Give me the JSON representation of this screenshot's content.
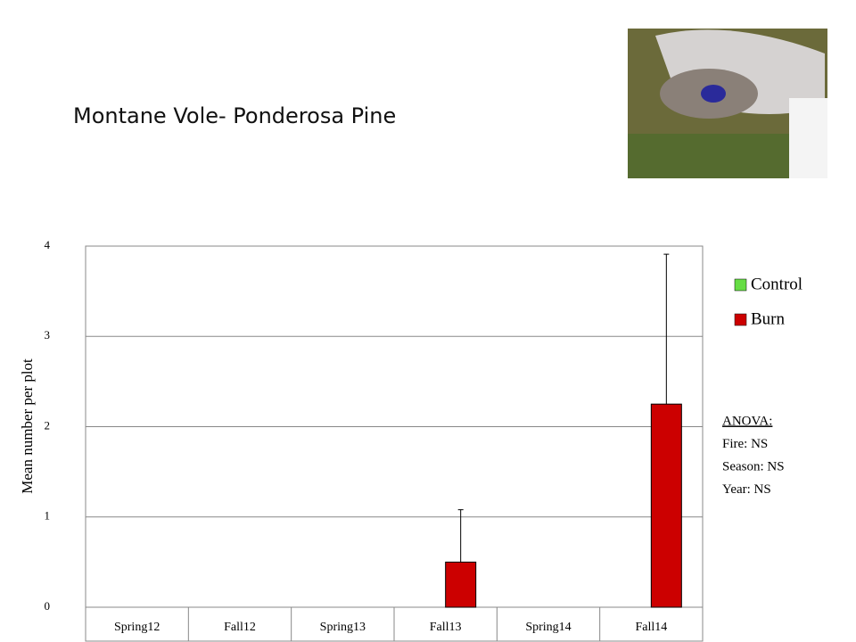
{
  "chart_data": {
    "type": "bar",
    "title": "Montane Vole- Ponderosa Pine",
    "y_label": "Mean number per plot",
    "categories": [
      "Spring12",
      "Fall12",
      "Spring13",
      "Fall13",
      "Spring14",
      "Fall14"
    ],
    "series": [
      {
        "name": "Control",
        "color": "#66dd44",
        "values": [
          0,
          0,
          0,
          0,
          0,
          0
        ]
      },
      {
        "name": "Burn",
        "color": "#cc0000",
        "values": [
          0,
          0,
          0,
          0.5,
          0,
          2.25
        ],
        "errors": [
          null,
          null,
          null,
          0.58,
          null,
          1.66
        ]
      }
    ],
    "ylim": [
      0,
      4
    ],
    "yticks": [
      0,
      1,
      2,
      3,
      4
    ],
    "grid": true,
    "annotations": [
      "ANOVA:",
      "Fire: NS",
      "Season: NS",
      "Year: NS"
    ]
  }
}
